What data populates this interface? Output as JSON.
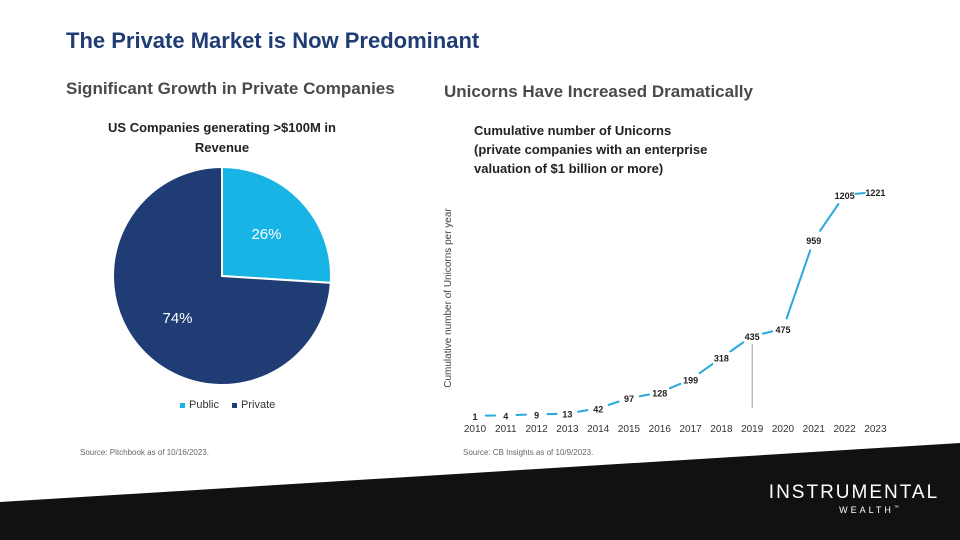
{
  "slide": {
    "title": "The Private Market is Now Predominant",
    "left_subtitle": "Significant Growth in Private Companies",
    "right_subtitle": "Unicorns Have Increased Dramatically"
  },
  "colors": {
    "title": "#1f3c74",
    "public": "#19b4e6",
    "private": "#1f3c74",
    "line": "#2aa7dc",
    "footer": "#111111"
  },
  "chart_data": [
    {
      "type": "pie",
      "title_lines": [
        "US Companies generating >$100M in",
        "Revenue"
      ],
      "slices": [
        {
          "name": "Public",
          "value": 26,
          "label": "26%"
        },
        {
          "name": "Private",
          "value": 74,
          "label": "74%"
        }
      ],
      "legend": [
        "Public",
        "Private"
      ],
      "legend_position": "bottom",
      "source": "Source: Pitchbook as of 10/16/2023."
    },
    {
      "type": "line",
      "title_lines": [
        "Cumulative number of Unicorns",
        "(private companies with an enterprise",
        "valuation of $1 billion or more)"
      ],
      "ylabel": "Cumulative number of Unicorns per year",
      "xlabel": "",
      "x": [
        "2010",
        "2011",
        "2012",
        "2013",
        "2014",
        "2015",
        "2016",
        "2017",
        "2018",
        "2019",
        "2020",
        "2021",
        "2022",
        "2023"
      ],
      "values": [
        1,
        4,
        9,
        13,
        42,
        97,
        128,
        199,
        318,
        435,
        475,
        959,
        1205,
        1221
      ],
      "data_labels": [
        "1",
        "4",
        "9",
        "13",
        "42",
        "97",
        "128",
        "199",
        "318",
        "435",
        "475",
        "959",
        "1205",
        "1221"
      ],
      "ylim": [
        0,
        1300
      ],
      "grid": false,
      "source": "Source: CB Insights as of 10/9/2023."
    }
  ],
  "brand": {
    "name": "INSTRUMENTAL",
    "sub": "WEALTH",
    "tm": "™"
  }
}
